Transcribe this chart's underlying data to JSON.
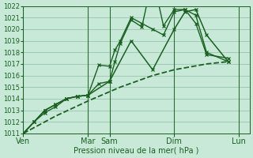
{
  "title": "Pression niveau de la mer( hPa )",
  "bg_color": "#c8e8d8",
  "grid_color": "#90bca8",
  "line_color": "#1a6020",
  "ylim": [
    1011,
    1022
  ],
  "day_labels": [
    "Ven",
    "",
    "Mar",
    "Sam",
    "",
    "Dim",
    "",
    "Lun"
  ],
  "vline_positions": [
    0,
    6,
    8,
    14,
    20
  ],
  "vline_labels": [
    "Ven",
    "Mar",
    "Sam",
    "Dim",
    "Lun"
  ],
  "xlim": [
    0,
    21
  ],
  "lines": [
    {
      "x": [
        0,
        1,
        2,
        3,
        4,
        5,
        6,
        7,
        8,
        8.5,
        9,
        10,
        11,
        12,
        13,
        14,
        15,
        16,
        17,
        19
      ],
      "y": [
        1011,
        1012,
        1012.8,
        1013.3,
        1014,
        1014.2,
        1014.3,
        1016.9,
        1016.8,
        1018.2,
        1019,
        1021,
        1020.5,
        1020,
        1019.5,
        1021.5,
        1021.7,
        1021.2,
        1018,
        1017.2
      ],
      "marker": "x",
      "lw": 1.0,
      "ms": 3.5,
      "ls": "-"
    },
    {
      "x": [
        0,
        1,
        2,
        3,
        4,
        5,
        6,
        7,
        8,
        8.5,
        9,
        10,
        11,
        12,
        13,
        14,
        15,
        16,
        17,
        19
      ],
      "y": [
        1011,
        1012,
        1013,
        1013.5,
        1014,
        1014.2,
        1014.3,
        1015.3,
        1015.5,
        1017.2,
        1018.8,
        1020.8,
        1020.2,
        1024.5,
        1020.3,
        1021.7,
        1021.7,
        1020.5,
        1017.8,
        1017.5
      ],
      "marker": "x",
      "lw": 1.0,
      "ms": 3.5,
      "ls": "-"
    },
    {
      "x": [
        0,
        1,
        2,
        3,
        4,
        5,
        6,
        8,
        10,
        12,
        14,
        15,
        16,
        17,
        19
      ],
      "y": [
        1011,
        1012,
        1013,
        1013.5,
        1014,
        1014.2,
        1014.3,
        1015.5,
        1019,
        1016.5,
        1020,
        1021.5,
        1021.7,
        1019.5,
        1017.2
      ],
      "marker": "x",
      "lw": 1.1,
      "ms": 3.5,
      "ls": "-"
    },
    {
      "x": [
        0,
        3,
        6,
        9,
        12,
        14,
        17,
        19
      ],
      "y": [
        1011,
        1012.5,
        1013.8,
        1015,
        1016,
        1016.5,
        1017,
        1017.2
      ],
      "marker": null,
      "lw": 1.3,
      "ms": 0,
      "ls": "--"
    }
  ]
}
